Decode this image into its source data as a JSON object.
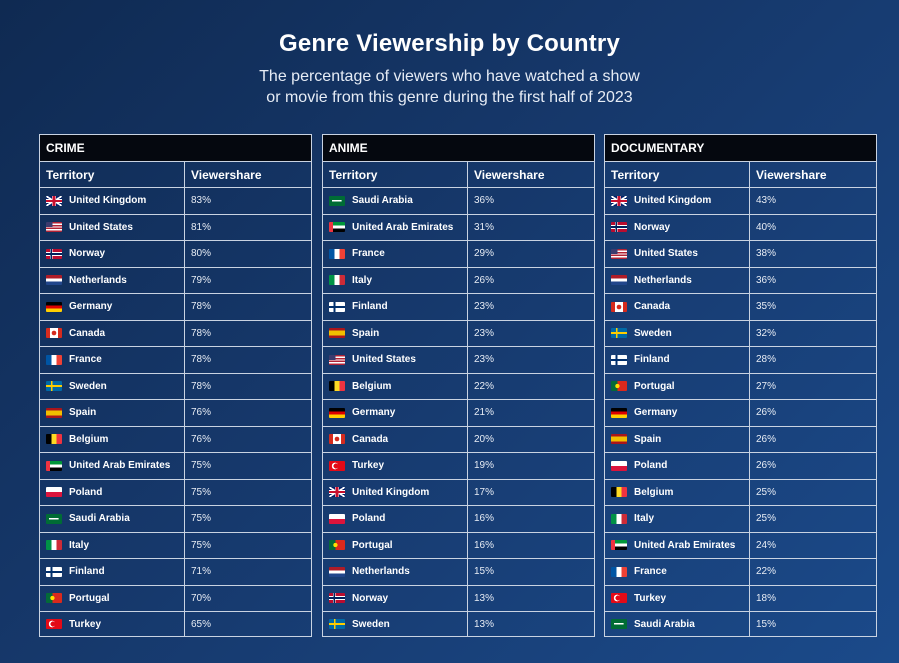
{
  "title": "Genre Viewership by Country",
  "subtitle_line1": "The percentage of viewers who have watched a show",
  "subtitle_line2": "or movie from this genre during the first half of 2023",
  "chart_data": {
    "type": "table",
    "title": "Genre Viewership by Country",
    "columns": [
      "Territory",
      "Viewershare"
    ],
    "tables": [
      {
        "genre": "CRIME",
        "rows": [
          {
            "territory": "United Kingdom",
            "flag": "gb",
            "value": "83%"
          },
          {
            "territory": "United States",
            "flag": "us",
            "value": "81%"
          },
          {
            "territory": "Norway",
            "flag": "no",
            "value": "80%"
          },
          {
            "territory": "Netherlands",
            "flag": "nl",
            "value": "79%"
          },
          {
            "territory": "Germany",
            "flag": "de",
            "value": "78%"
          },
          {
            "territory": "Canada",
            "flag": "ca",
            "value": "78%"
          },
          {
            "territory": "France",
            "flag": "fr",
            "value": "78%"
          },
          {
            "territory": "Sweden",
            "flag": "se",
            "value": "78%"
          },
          {
            "territory": "Spain",
            "flag": "es",
            "value": "76%"
          },
          {
            "territory": "Belgium",
            "flag": "be",
            "value": "76%"
          },
          {
            "territory": "United Arab Emirates",
            "flag": "ae",
            "value": "75%"
          },
          {
            "territory": "Poland",
            "flag": "pl",
            "value": "75%"
          },
          {
            "territory": "Saudi Arabia",
            "flag": "sa",
            "value": "75%"
          },
          {
            "territory": "Italy",
            "flag": "it",
            "value": "75%"
          },
          {
            "territory": "Finland",
            "flag": "fi",
            "value": "71%"
          },
          {
            "territory": "Portugal",
            "flag": "pt",
            "value": "70%"
          },
          {
            "territory": "Turkey",
            "flag": "tr",
            "value": "65%"
          }
        ]
      },
      {
        "genre": "ANIME",
        "rows": [
          {
            "territory": "Saudi Arabia",
            "flag": "sa",
            "value": "36%"
          },
          {
            "territory": "United Arab Emirates",
            "flag": "ae",
            "value": "31%"
          },
          {
            "territory": "France",
            "flag": "fr",
            "value": "29%"
          },
          {
            "territory": "Italy",
            "flag": "it",
            "value": "26%"
          },
          {
            "territory": "Finland",
            "flag": "fi",
            "value": "23%"
          },
          {
            "territory": "Spain",
            "flag": "es",
            "value": "23%"
          },
          {
            "territory": "United States",
            "flag": "us",
            "value": "23%"
          },
          {
            "territory": "Belgium",
            "flag": "be",
            "value": "22%"
          },
          {
            "territory": "Germany",
            "flag": "de",
            "value": "21%"
          },
          {
            "territory": "Canada",
            "flag": "ca",
            "value": "20%"
          },
          {
            "territory": "Turkey",
            "flag": "tr",
            "value": "19%"
          },
          {
            "territory": "United Kingdom",
            "flag": "gb",
            "value": "17%"
          },
          {
            "territory": "Poland",
            "flag": "pl",
            "value": "16%"
          },
          {
            "territory": "Portugal",
            "flag": "pt",
            "value": "16%"
          },
          {
            "territory": "Netherlands",
            "flag": "nl",
            "value": "15%"
          },
          {
            "territory": "Norway",
            "flag": "no",
            "value": "13%"
          },
          {
            "territory": "Sweden",
            "flag": "se",
            "value": "13%"
          }
        ]
      },
      {
        "genre": "DOCUMENTARY",
        "rows": [
          {
            "territory": "United Kingdom",
            "flag": "gb",
            "value": "43%"
          },
          {
            "territory": "Norway",
            "flag": "no",
            "value": "40%"
          },
          {
            "territory": "United States",
            "flag": "us",
            "value": "38%"
          },
          {
            "territory": "Netherlands",
            "flag": "nl",
            "value": "36%"
          },
          {
            "territory": "Canada",
            "flag": "ca",
            "value": "35%"
          },
          {
            "territory": "Sweden",
            "flag": "se",
            "value": "32%"
          },
          {
            "territory": "Finland",
            "flag": "fi",
            "value": "28%"
          },
          {
            "territory": "Portugal",
            "flag": "pt",
            "value": "27%"
          },
          {
            "territory": "Germany",
            "flag": "de",
            "value": "26%"
          },
          {
            "territory": "Spain",
            "flag": "es",
            "value": "26%"
          },
          {
            "territory": "Poland",
            "flag": "pl",
            "value": "26%"
          },
          {
            "territory": "Belgium",
            "flag": "be",
            "value": "25%"
          },
          {
            "territory": "Italy",
            "flag": "it",
            "value": "25%"
          },
          {
            "territory": "United Arab Emirates",
            "flag": "ae",
            "value": "24%"
          },
          {
            "territory": "France",
            "flag": "fr",
            "value": "22%"
          },
          {
            "territory": "Turkey",
            "flag": "tr",
            "value": "18%"
          },
          {
            "territory": "Saudi Arabia",
            "flag": "sa",
            "value": "15%"
          }
        ]
      }
    ]
  }
}
